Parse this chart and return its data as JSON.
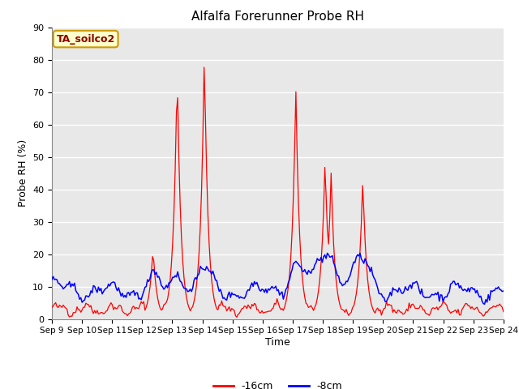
{
  "title": "Alfalfa Forerunner Probe RH",
  "ylabel": "Probe RH (%)",
  "xlabel": "Time",
  "ylim": [
    0,
    90
  ],
  "bg_color": "#e8e8e8",
  "grid_color": "#ffffff",
  "fig_bg_color": "#ffffff",
  "legend_label1": "-16cm",
  "legend_label2": "-8cm",
  "legend_color1": "#ff0000",
  "legend_color2": "#0000ff",
  "annotation_text": "TA_soilco2",
  "annotation_bg": "#ffffcc",
  "annotation_border": "#cc9900",
  "x_tick_labels": [
    "Sep 9",
    "Sep 10",
    "Sep 11",
    "Sep 12",
    "Sep 13",
    "Sep 14",
    "Sep 15",
    "Sep 16",
    "Sep 17",
    "Sep 18",
    "Sep 19",
    "Sep 20",
    "Sep 21",
    "Sep 22",
    "Sep 23",
    "Sep 24"
  ],
  "yticks": [
    0,
    10,
    20,
    30,
    40,
    50,
    60,
    70,
    80,
    90
  ]
}
